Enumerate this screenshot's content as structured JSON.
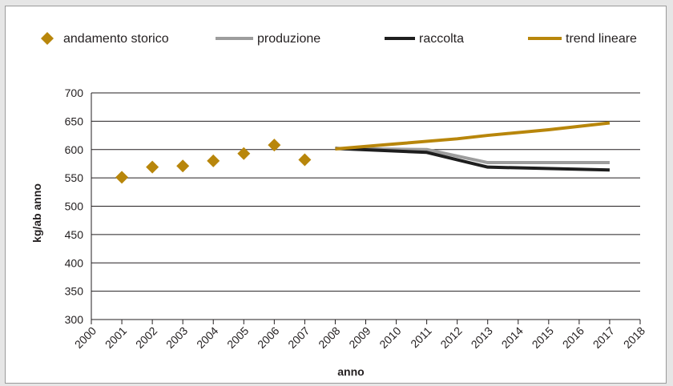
{
  "chart_data": {
    "type": "line",
    "title": "",
    "xlabel": "anno",
    "ylabel": "kg/ab anno",
    "ylim": [
      300,
      700
    ],
    "yticks": [
      300,
      350,
      400,
      450,
      500,
      550,
      600,
      650,
      700
    ],
    "categories": [
      "2000",
      "2001",
      "2002",
      "2003",
      "2004",
      "2005",
      "2006",
      "2007",
      "2008",
      "2009",
      "2010",
      "2011",
      "2012",
      "2013",
      "2014",
      "2015",
      "2016",
      "2017",
      "2018"
    ],
    "grid": "horizontal",
    "legend_position": "top",
    "series": [
      {
        "name": "andamento storico",
        "marker": "diamond",
        "color": "#b8860b",
        "points": [
          {
            "x": "2001",
            "y": 551
          },
          {
            "x": "2002",
            "y": 569
          },
          {
            "x": "2003",
            "y": 571
          },
          {
            "x": "2004",
            "y": 580
          },
          {
            "x": "2005",
            "y": 593
          },
          {
            "x": "2006",
            "y": 608
          },
          {
            "x": "2007",
            "y": 582
          }
        ]
      },
      {
        "name": "produzione",
        "color": "#9d9d9d",
        "points": [
          {
            "x": "2008",
            "y": 602
          },
          {
            "x": "2011",
            "y": 600
          },
          {
            "x": "2013",
            "y": 577
          },
          {
            "x": "2017",
            "y": 577
          }
        ]
      },
      {
        "name": "raccolta",
        "color": "#1e1e1e",
        "points": [
          {
            "x": "2008",
            "y": 602
          },
          {
            "x": "2011",
            "y": 595
          },
          {
            "x": "2013",
            "y": 569
          },
          {
            "x": "2017",
            "y": 564
          }
        ]
      },
      {
        "name": "trend lineare",
        "color": "#b8860b",
        "points": [
          {
            "x": "2008",
            "y": 601
          },
          {
            "x": "2010",
            "y": 610
          },
          {
            "x": "2012",
            "y": 619
          },
          {
            "x": "2013",
            "y": 625
          },
          {
            "x": "2015",
            "y": 635
          },
          {
            "x": "2017",
            "y": 647
          }
        ]
      }
    ]
  }
}
